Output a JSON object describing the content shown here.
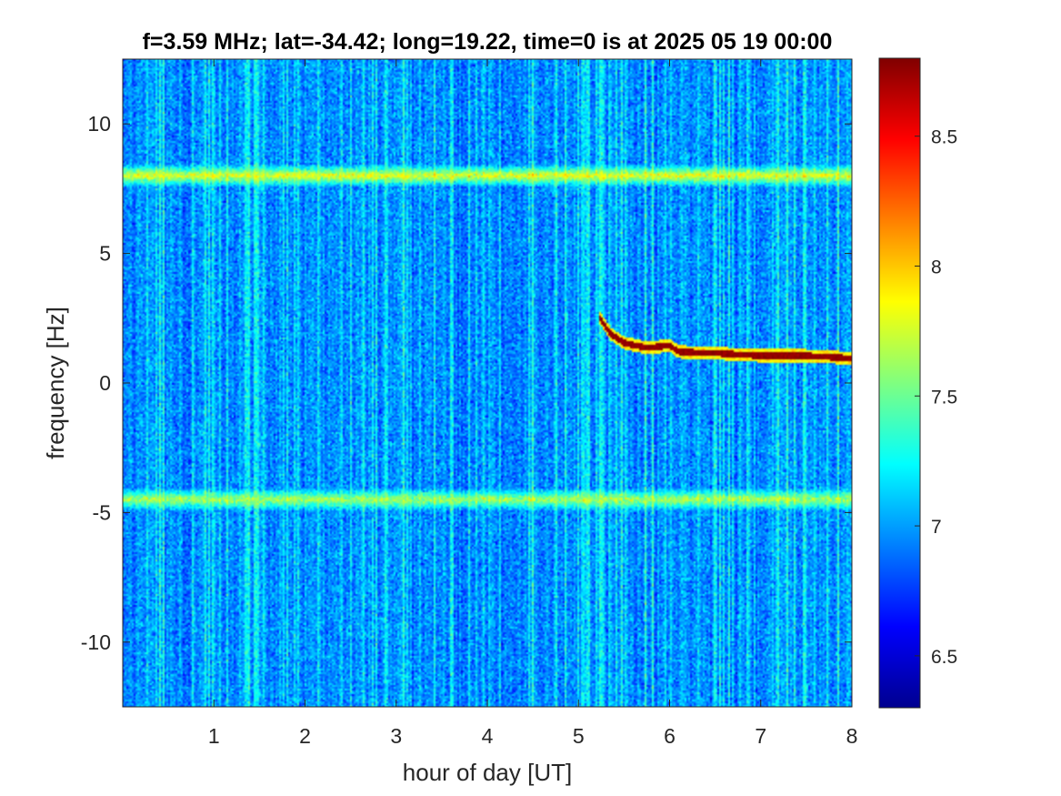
{
  "chart_data": {
    "type": "heatmap",
    "title": "f=3.59 MHz;  lat=-34.42; long=19.22, time=0 is at 2025 05 19 00:00",
    "xlabel": "hour of day [UT]",
    "ylabel": "frequency [Hz]",
    "xlim": [
      0,
      8
    ],
    "ylim": [
      -12.5,
      12.5
    ],
    "x_ticks": [
      1,
      2,
      3,
      4,
      5,
      6,
      7,
      8
    ],
    "x_tick_labels": [
      "1",
      "2",
      "3",
      "4",
      "5",
      "6",
      "7",
      "8"
    ],
    "y_ticks": [
      10,
      5,
      0,
      -5,
      -10
    ],
    "y_tick_labels": [
      "10",
      "5",
      "0",
      "-5",
      "-10"
    ],
    "colormap": "jet",
    "color_range": [
      6.3,
      8.8
    ],
    "colorbar_ticks": [
      8.5,
      8,
      7.5,
      7,
      6.5
    ],
    "colorbar_tick_labels": [
      "8.5",
      "8",
      "7.5",
      "7",
      "6.5"
    ],
    "background_level": 6.95,
    "horizontal_bands": [
      {
        "frequency_hz": 8.0,
        "level": 8.1
      },
      {
        "frequency_hz": -4.5,
        "level": 7.9
      }
    ],
    "doppler_trace": {
      "level": 8.75,
      "points": [
        [
          5.22,
          2.6
        ],
        [
          5.35,
          1.9
        ],
        [
          5.5,
          1.55
        ],
        [
          5.75,
          1.35
        ],
        [
          6.0,
          1.45
        ],
        [
          6.1,
          1.2
        ],
        [
          6.5,
          1.15
        ],
        [
          7.0,
          1.05
        ],
        [
          7.5,
          1.05
        ],
        [
          8.0,
          0.95
        ]
      ]
    },
    "grid": false
  }
}
